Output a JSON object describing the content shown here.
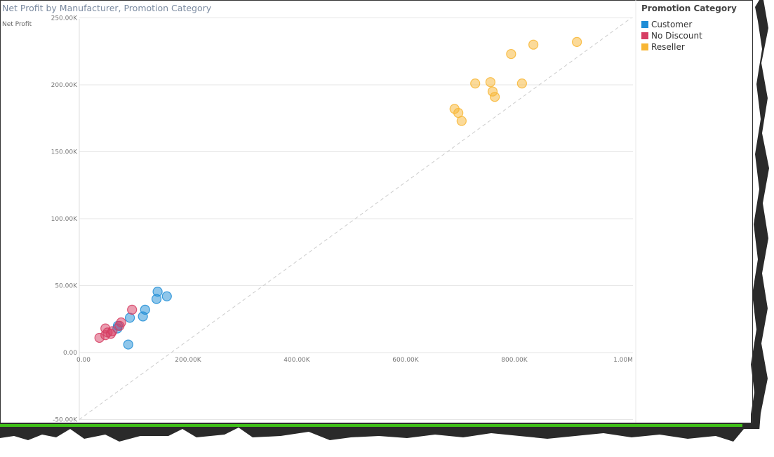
{
  "chart_data": {
    "type": "scatter",
    "title": "Net Profit by Manufacturer, Promotion Category",
    "ylabel": "Net Profit",
    "xlabel": "",
    "xlim": [
      0,
      1000000
    ],
    "ylim": [
      -50000,
      250000
    ],
    "x_ticks": [
      {
        "v": 0,
        "label": "0.00"
      },
      {
        "v": 200000,
        "label": "200.00K"
      },
      {
        "v": 400000,
        "label": "400.00K"
      },
      {
        "v": 600000,
        "label": "600.00K"
      },
      {
        "v": 800000,
        "label": "800.00K"
      },
      {
        "v": 1000000,
        "label": "1.00M"
      }
    ],
    "y_ticks": [
      {
        "v": 250000,
        "label": "250.00K"
      },
      {
        "v": 200000,
        "label": "200.00K"
      },
      {
        "v": 150000,
        "label": "150.00K"
      },
      {
        "v": 100000,
        "label": "100.00K"
      },
      {
        "v": 50000,
        "label": "50.00K"
      },
      {
        "v": 0,
        "label": "0.00"
      },
      {
        "v": -50000,
        "label": "-50.00K"
      }
    ],
    "grid": true,
    "legend_title": "Promotion Category",
    "legend_position": "right",
    "trend_line": {
      "from": [
        0,
        -50000
      ],
      "to": [
        1015000,
        250000
      ],
      "style": "dashed"
    },
    "series": [
      {
        "name": "Customer",
        "color": "#1f8dd6",
        "points": [
          [
            144000,
            45500
          ],
          [
            142000,
            40000
          ],
          [
            161000,
            42000
          ],
          [
            121000,
            32000
          ],
          [
            117000,
            27000
          ],
          [
            93000,
            26000
          ],
          [
            90000,
            6000
          ],
          [
            71000,
            20000
          ],
          [
            70000,
            18000
          ]
        ]
      },
      {
        "name": "No Discount",
        "color": "#d63e63",
        "points": [
          [
            97000,
            32000
          ],
          [
            77000,
            22500
          ],
          [
            74000,
            20000
          ],
          [
            48000,
            18000
          ],
          [
            61000,
            16000
          ],
          [
            52000,
            15000
          ],
          [
            48000,
            13000
          ],
          [
            37000,
            11000
          ],
          [
            58000,
            14000
          ]
        ]
      },
      {
        "name": "Reseller",
        "color": "#f8b634",
        "points": [
          [
            915000,
            232000
          ],
          [
            835000,
            230000
          ],
          [
            794000,
            223000
          ],
          [
            728000,
            201000
          ],
          [
            756000,
            202000
          ],
          [
            814000,
            201000
          ],
          [
            760000,
            195000
          ],
          [
            764000,
            191000
          ],
          [
            690000,
            182000
          ],
          [
            697000,
            179000
          ],
          [
            703000,
            173000
          ]
        ]
      }
    ]
  }
}
